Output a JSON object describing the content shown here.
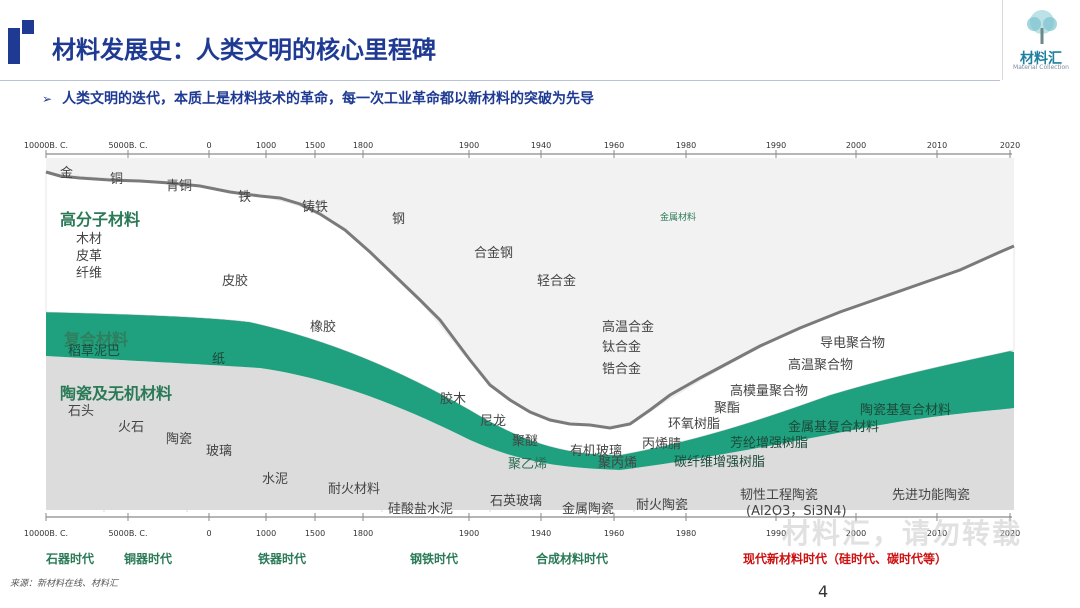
{
  "header": {
    "title": "材料发展史：人类文明的核心里程碑",
    "logo_text": "材料汇",
    "logo_sub": "Material Collection",
    "logo_icon": "tree-icon"
  },
  "subtitle": "人类文明的迭代，本质上是材料技术的革命，每一次工业革命都以新材料的突破为先导",
  "axis_labels": [
    "10000B. C.",
    "5000B. C.",
    "0",
    "1000",
    "1500",
    "1800",
    "1900",
    "1940",
    "1960",
    "1980",
    "1990",
    "2000",
    "2010",
    "2020"
  ],
  "categories": {
    "polymer": "高分子材料",
    "composite": "复合材料",
    "ceramic": "陶瓷及无机材料"
  },
  "metals": [
    "金",
    "铜",
    "青铜",
    "铁",
    "铸铁",
    "钢",
    "合金钢",
    "轻合金",
    "高温合金",
    "钛合金",
    "锆合金"
  ],
  "metal_material": "金属材料",
  "polymers": [
    "木材",
    "皮革",
    "纤维",
    "皮胶",
    "橡胶",
    "胶木",
    "尼龙",
    "聚醚",
    "聚乙烯",
    "有机玻璃",
    "聚丙烯",
    "丙烯腈",
    "环氧树脂",
    "聚酯",
    "高模量聚合物",
    "高温聚合物",
    "导电聚合物"
  ],
  "composites": [
    "稻草泥巴",
    "纸",
    "芳纶增强树脂",
    "碳纤维增强树脂",
    "金属基复合材料",
    "陶瓷基复合材料"
  ],
  "ceramics": [
    "石头",
    "火石",
    "陶瓷",
    "玻璃",
    "水泥",
    "耐火材料",
    "硅酸盐水泥",
    "石英玻璃",
    "金属陶瓷",
    "耐火陶瓷",
    "韧性工程陶瓷",
    "(Al2O3，Si3N4)",
    "先进功能陶瓷"
  ],
  "eras": [
    {
      "label": "石器时代",
      "color": "#2b7a57"
    },
    {
      "label": "铜器时代",
      "color": "#2b7a57"
    },
    {
      "label": "铁器时代",
      "color": "#2b7a57"
    },
    {
      "label": "钢铁时代",
      "color": "#2b7a57"
    },
    {
      "label": "合成材料时代",
      "color": "#2b7a57"
    },
    {
      "label": "现代新材料时代（硅时代、碳时代等）",
      "color": "#cc1111"
    }
  ],
  "source": "来源：新材料在线、材料汇",
  "page_number": "4",
  "watermark": "材料汇，请勿转载"
}
